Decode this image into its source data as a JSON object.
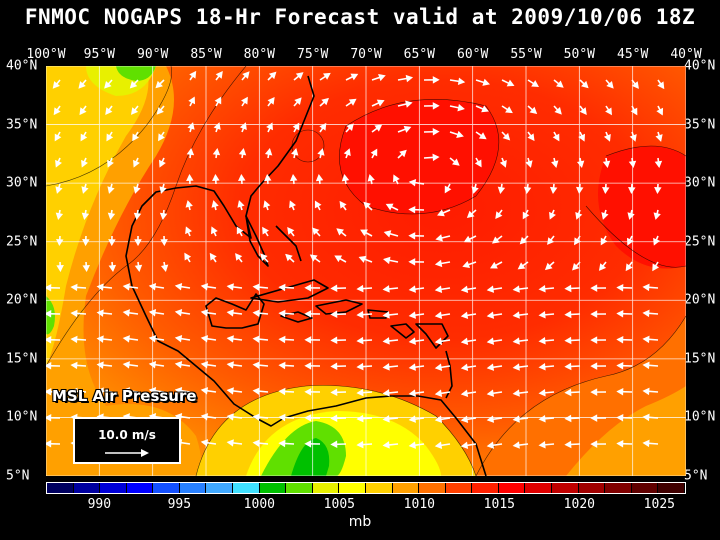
{
  "title": "FNMOC NOGAPS 18-Hr Forecast valid at 2009/10/06 18Z",
  "longitude_labels": [
    "100°W",
    "95°W",
    "90°W",
    "85°W",
    "80°W",
    "75°W",
    "70°W",
    "65°W",
    "60°W",
    "55°W",
    "50°W",
    "45°W",
    "40°W"
  ],
  "latitude_labels": [
    "40°N",
    "35°N",
    "30°N",
    "25°N",
    "20°N",
    "15°N",
    "10°N",
    "5°N"
  ],
  "map": {
    "field_label": "MSL Air Pressure",
    "reference_vector_label": "10.0 m/s"
  },
  "colorbar": {
    "unit": "mb",
    "tick_labels": [
      "990",
      "995",
      "1000",
      "1005",
      "1010",
      "1015",
      "1020",
      "1025"
    ],
    "colors": [
      "#000060",
      "#0000a0",
      "#0000d8",
      "#0000ff",
      "#1450ff",
      "#2880ff",
      "#40a8ff",
      "#40e0ff",
      "#00c000",
      "#60e000",
      "#e8f000",
      "#ffff00",
      "#ffd000",
      "#ffa000",
      "#ff7000",
      "#ff4000",
      "#ff2000",
      "#ff0000",
      "#e00000",
      "#c00000",
      "#a00000",
      "#800000",
      "#600000",
      "#400000"
    ]
  }
}
